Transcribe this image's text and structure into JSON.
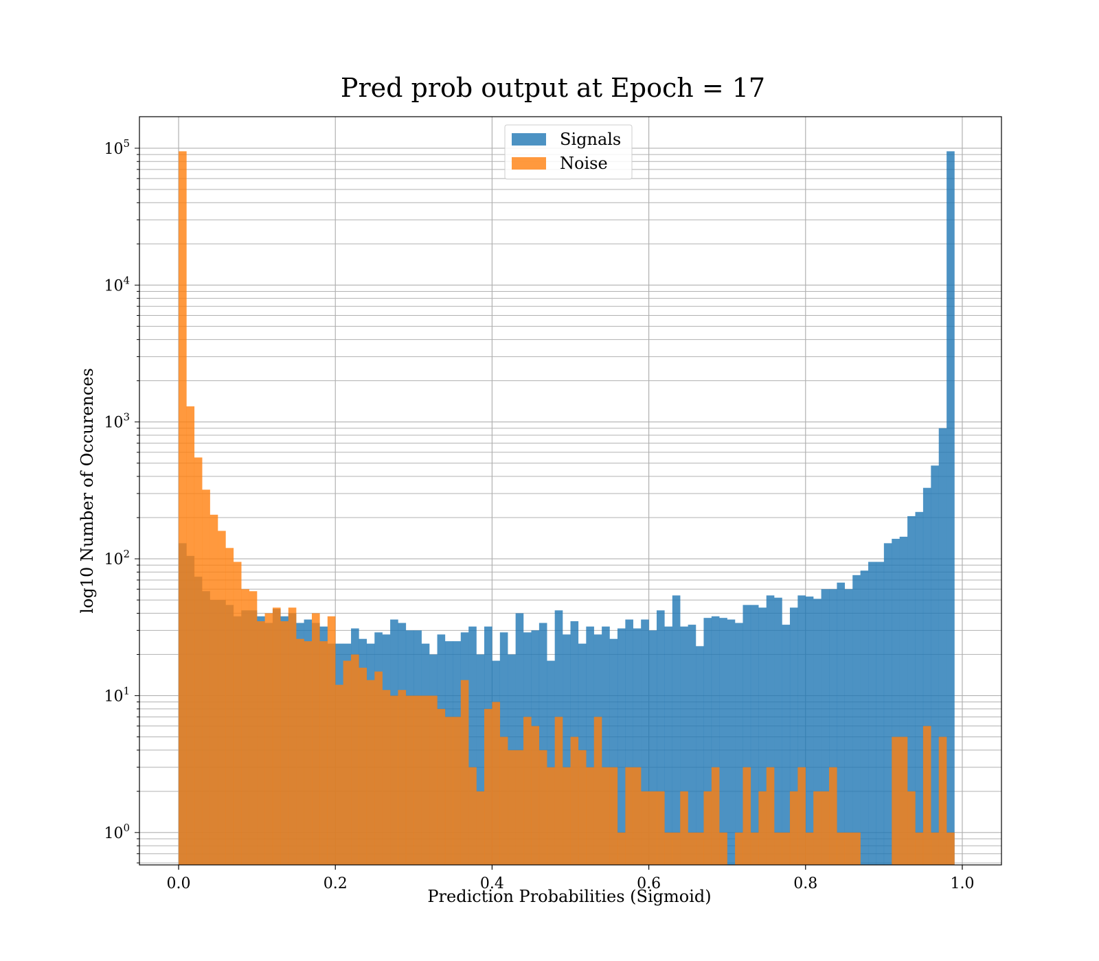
{
  "chart_data": {
    "type": "bar",
    "title": "Pred prob output at Epoch = 17",
    "xlabel": "Prediction Probabilities (Sigmoid)",
    "ylabel": "log10 Number of Occurences",
    "x_scale": "linear",
    "y_scale": "log",
    "xlim": [
      -0.05,
      1.05
    ],
    "ylim": [
      0.58,
      170000
    ],
    "x_ticks": [
      {
        "value": 0.0,
        "label": "0.0"
      },
      {
        "value": 0.2,
        "label": "0.2"
      },
      {
        "value": 0.4,
        "label": "0.4"
      },
      {
        "value": 0.6,
        "label": "0.6"
      },
      {
        "value": 0.8,
        "label": "0.8"
      },
      {
        "value": 1.0,
        "label": "1.0"
      }
    ],
    "y_ticks": [
      {
        "value": 1,
        "base": "10",
        "exp": "0"
      },
      {
        "value": 10,
        "base": "10",
        "exp": "1"
      },
      {
        "value": 100,
        "base": "10",
        "exp": "2"
      },
      {
        "value": 1000,
        "base": "10",
        "exp": "3"
      },
      {
        "value": 10000,
        "base": "10",
        "exp": "4"
      },
      {
        "value": 100000,
        "base": "10",
        "exp": "5"
      }
    ],
    "grid": true,
    "legend_position": "top-center",
    "bins": 100,
    "bin_range": [
      0,
      1
    ],
    "series": [
      {
        "name": "Signals",
        "color": "#1f77b4",
        "opacity": 0.8,
        "values": [
          130,
          105,
          74,
          58,
          50,
          50,
          46,
          38,
          42,
          42,
          38,
          34,
          43,
          38,
          40,
          34,
          36,
          34,
          32,
          24,
          24,
          24,
          31,
          26,
          24,
          29,
          28,
          36,
          34,
          30,
          30,
          24,
          20,
          28,
          25,
          25,
          29,
          32,
          20,
          32,
          18,
          29,
          20,
          40,
          29,
          30,
          34,
          18,
          42,
          28,
          35,
          24,
          32,
          28,
          32,
          26,
          31,
          36,
          31,
          36,
          30,
          42,
          32,
          54,
          32,
          33,
          23,
          37,
          38,
          37,
          36,
          34,
          46,
          46,
          44,
          54,
          52,
          33,
          44,
          54,
          53,
          51,
          60,
          60,
          67,
          60,
          76,
          82,
          95,
          95,
          130,
          140,
          145,
          205,
          220,
          330,
          480,
          900,
          95000,
          0
        ]
      },
      {
        "name": "Noise",
        "color": "#ff7f0e",
        "opacity": 0.8,
        "values": [
          95000,
          1300,
          550,
          320,
          210,
          160,
          120,
          95,
          60,
          58,
          35,
          40,
          44,
          35,
          44,
          26,
          25,
          40,
          25,
          38,
          12,
          18,
          20,
          16,
          13,
          15,
          11,
          10,
          11,
          10,
          10,
          10,
          10,
          8,
          7,
          7,
          13,
          3,
          2,
          8,
          9,
          5,
          4,
          4,
          7,
          6,
          4,
          3,
          7,
          3,
          5,
          4,
          3,
          7,
          3,
          3,
          1,
          3,
          3,
          2,
          2,
          2,
          1,
          1,
          2,
          1,
          1,
          2,
          3,
          1,
          0,
          1,
          3,
          1,
          2,
          3,
          1,
          1,
          2,
          3,
          1,
          2,
          2,
          3,
          1,
          1,
          1,
          0,
          0,
          0,
          0,
          5,
          5,
          2,
          1,
          6,
          1,
          5,
          1,
          0
        ]
      }
    ]
  }
}
